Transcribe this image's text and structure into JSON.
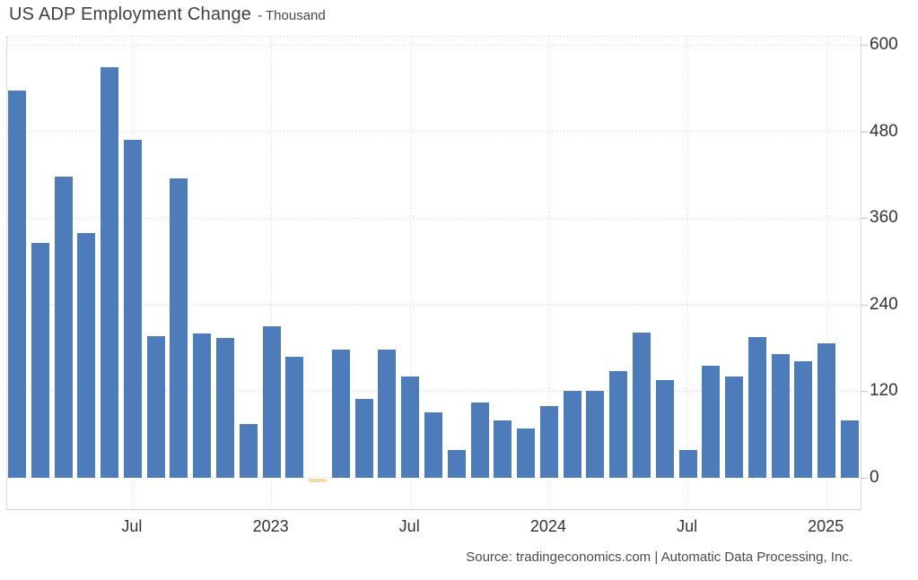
{
  "title": "US ADP Employment Change",
  "subtitle": "- Thousand",
  "source": "Source: tradingeconomics.com | Automatic Data Processing, Inc.",
  "colors": {
    "bar_positive": "#4e7cba",
    "bar_negative": "#f0dcaa",
    "grid": "#d2d2d2",
    "axis_text": "#333333",
    "title_text": "#3f3f3f",
    "source_text": "#4a4a4a"
  },
  "chart_data": {
    "type": "bar",
    "title": "US ADP Employment Change",
    "unit": "Thousand",
    "grid": true,
    "legend": false,
    "y_axis_side": "right",
    "ylim": [
      -46,
      612
    ],
    "yticks": [
      0,
      120,
      240,
      360,
      480,
      600
    ],
    "x": [
      "Feb 2022",
      "Mar 2022",
      "Apr 2022",
      "May 2022",
      "Jun 2022",
      "Jul 2022",
      "Aug 2022",
      "Sep 2022",
      "Oct 2022",
      "Nov 2022",
      "Dec 2022",
      "Jan 2023",
      "Feb 2023",
      "Mar 2023",
      "Apr 2023",
      "May 2023",
      "Jun 2023",
      "Jul 2023",
      "Aug 2023",
      "Sep 2023",
      "Oct 2023",
      "Nov 2023",
      "Dec 2023",
      "Jan 2024",
      "Feb 2024",
      "Mar 2024",
      "Apr 2024",
      "May 2024",
      "Jun 2024",
      "Jul 2024",
      "Aug 2024",
      "Sep 2024",
      "Oct 2024",
      "Nov 2024",
      "Dec 2024",
      "Jan 2025",
      "Feb 2025"
    ],
    "values": [
      537,
      326,
      418,
      339,
      570,
      469,
      197,
      415,
      200,
      194,
      75,
      210,
      168,
      -5,
      178,
      110,
      178,
      140,
      91,
      38,
      105,
      80,
      69,
      99,
      121,
      121,
      148,
      202,
      135,
      38,
      155,
      140,
      195,
      171,
      162,
      186,
      80
    ],
    "xticks": [
      {
        "bar": 5,
        "label": "Jul"
      },
      {
        "bar": 11,
        "label": "2023"
      },
      {
        "bar": 17,
        "label": "Jul"
      },
      {
        "bar": 23,
        "label": "2024"
      },
      {
        "bar": 29,
        "label": "Jul"
      },
      {
        "bar": 35,
        "label": "2025"
      }
    ]
  }
}
